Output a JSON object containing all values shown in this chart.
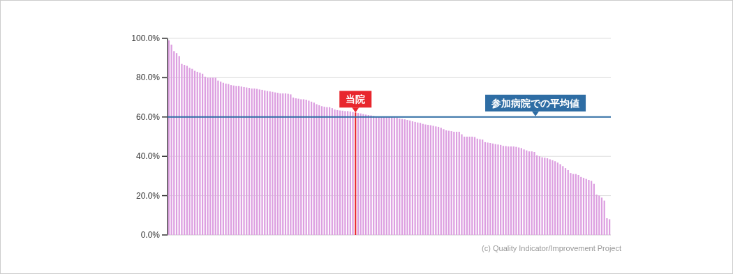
{
  "chart_data": {
    "type": "bar",
    "categories": [
      null,
      null,
      null,
      null,
      null,
      null,
      null,
      null,
      null,
      null,
      null,
      null,
      null,
      null,
      null,
      null,
      null,
      null,
      null,
      null,
      null,
      null,
      null,
      null,
      null,
      null,
      null,
      null,
      null,
      null,
      null,
      null,
      null,
      null,
      null,
      null,
      null,
      null,
      null,
      null,
      null,
      null,
      null,
      null,
      null,
      null,
      null,
      null,
      null,
      null,
      null,
      null,
      null,
      null,
      null,
      null,
      null,
      null,
      null,
      null,
      null,
      null,
      null,
      null,
      null,
      null,
      null,
      null,
      null,
      null,
      null,
      null,
      null,
      null,
      null,
      null,
      null,
      null,
      null,
      null,
      null,
      null,
      null,
      null,
      null,
      null,
      null,
      null,
      null,
      null,
      null,
      null,
      null,
      null,
      null,
      null,
      null,
      null,
      null,
      null,
      null,
      null,
      null,
      null,
      null,
      null,
      null,
      null,
      null,
      null,
      null,
      null,
      null,
      null,
      null,
      null,
      null,
      null,
      null,
      null,
      null,
      null,
      null,
      null,
      null,
      null,
      null,
      null,
      null,
      null,
      null,
      null,
      null,
      null,
      null,
      null,
      null,
      null,
      null,
      null,
      null,
      null,
      null,
      null,
      null,
      null,
      null,
      null,
      null,
      null,
      null,
      null,
      null,
      null,
      null,
      null,
      null,
      null,
      null,
      null,
      null,
      null,
      null,
      null,
      null,
      null,
      null,
      null,
      null,
      null,
      null
    ],
    "values": [
      99,
      96.8,
      93.5,
      92.5,
      91,
      87,
      86.5,
      86,
      85,
      84.5,
      83.5,
      83,
      82.5,
      82,
      80.5,
      80,
      80,
      80,
      80,
      78.5,
      78,
      77.4,
      77,
      76.8,
      76.2,
      76,
      75.8,
      75.8,
      75.5,
      75.2,
      75,
      74.8,
      74.5,
      74.5,
      74.3,
      74,
      73.8,
      73.5,
      73.2,
      73,
      72.8,
      72.5,
      72.3,
      72,
      72,
      72,
      71.8,
      71.5,
      69.9,
      69.5,
      69.3,
      69,
      69,
      68.8,
      68.3,
      67.8,
      67.3,
      66.5,
      66,
      65.5,
      65.2,
      65,
      65,
      64.5,
      63.8,
      63.5,
      63.3,
      63.2,
      63,
      63,
      62.8,
      62.5,
      62.3,
      62,
      61.8,
      61.5,
      61.2,
      61,
      60.8,
      60.5,
      60.3,
      60.2,
      60.1,
      60,
      60,
      60,
      59.9,
      59.8,
      59.7,
      59.2,
      59,
      58.8,
      58.5,
      58.2,
      57.8,
      57.5,
      57.2,
      57,
      56.5,
      56.2,
      56,
      55.8,
      55.5,
      55.2,
      55,
      54.5,
      53.8,
      53.2,
      53,
      52.8,
      52.5,
      52.5,
      52.5,
      51.2,
      50,
      50,
      50,
      50,
      49.8,
      49,
      48.7,
      48.5,
      47.2,
      47,
      46.8,
      46.5,
      46.2,
      46,
      45.8,
      45.3,
      45.2,
      45,
      45,
      45,
      44.8,
      44.5,
      44.2,
      43.5,
      43,
      42.5,
      42.5,
      42.2,
      40.5,
      40,
      39.5,
      39.3,
      39,
      38.5,
      38,
      37.5,
      36.8,
      36,
      35,
      34,
      33,
      31.5,
      31,
      31,
      30.5,
      29.5,
      29,
      28.5,
      28,
      27.5,
      26,
      20.5,
      20,
      19,
      17.5,
      8.5,
      8
    ],
    "colors": [
      "#dc9ee0",
      "#dc9ee0",
      "#dc9ee0",
      "#dc9ee0",
      "#dc9ee0",
      "#dc9ee0",
      "#dc9ee0",
      "#dc9ee0",
      "#dc9ee0",
      "#dc9ee0",
      "#dc9ee0",
      "#dc9ee0",
      "#dc9ee0",
      "#dc9ee0",
      "#dc9ee0",
      "#dc9ee0",
      "#dc9ee0",
      "#dc9ee0",
      "#dc9ee0",
      "#dc9ee0",
      "#dc9ee0",
      "#dc9ee0",
      "#dc9ee0",
      "#dc9ee0",
      "#dc9ee0",
      "#dc9ee0",
      "#dc9ee0",
      "#dc9ee0",
      "#dc9ee0",
      "#dc9ee0",
      "#dc9ee0",
      "#dc9ee0",
      "#dc9ee0",
      "#dc9ee0",
      "#dc9ee0",
      "#dc9ee0",
      "#dc9ee0",
      "#dc9ee0",
      "#dc9ee0",
      "#dc9ee0",
      "#dc9ee0",
      "#dc9ee0",
      "#dc9ee0",
      "#dc9ee0",
      "#dc9ee0",
      "#dc9ee0",
      "#dc9ee0",
      "#dc9ee0",
      "#dc9ee0",
      "#dc9ee0",
      "#dc9ee0",
      "#dc9ee0",
      "#dc9ee0",
      "#dc9ee0",
      "#dc9ee0",
      "#dc9ee0",
      "#dc9ee0",
      "#dc9ee0",
      "#dc9ee0",
      "#dc9ee0",
      "#dc9ee0",
      "#dc9ee0",
      "#dc9ee0",
      "#dc9ee0",
      "#dc9ee0",
      "#dc9ee0",
      "#dc9ee0",
      "#dc9ee0",
      "#dc9ee0",
      "#dc9ee0",
      "#dc9ee0",
      "#dc9ee0",
      "#e8262d",
      "#dc9ee0",
      "#dc9ee0",
      "#dc9ee0",
      "#dc9ee0",
      "#dc9ee0",
      "#dc9ee0",
      "#dc9ee0",
      "#dc9ee0",
      "#dc9ee0",
      "#dc9ee0",
      "#dc9ee0",
      "#dc9ee0",
      "#dc9ee0",
      "#dc9ee0",
      "#dc9ee0",
      "#dc9ee0",
      "#dc9ee0",
      "#dc9ee0",
      "#dc9ee0",
      "#dc9ee0",
      "#dc9ee0",
      "#dc9ee0",
      "#dc9ee0",
      "#dc9ee0",
      "#dc9ee0",
      "#dc9ee0",
      "#dc9ee0",
      "#dc9ee0",
      "#dc9ee0",
      "#dc9ee0",
      "#dc9ee0",
      "#dc9ee0",
      "#dc9ee0",
      "#dc9ee0",
      "#dc9ee0",
      "#dc9ee0",
      "#dc9ee0",
      "#dc9ee0",
      "#dc9ee0",
      "#dc9ee0",
      "#dc9ee0",
      "#dc9ee0",
      "#dc9ee0",
      "#dc9ee0",
      "#dc9ee0",
      "#dc9ee0",
      "#dc9ee0",
      "#dc9ee0",
      "#dc9ee0",
      "#dc9ee0",
      "#dc9ee0",
      "#dc9ee0",
      "#dc9ee0",
      "#dc9ee0",
      "#dc9ee0",
      "#dc9ee0",
      "#dc9ee0",
      "#dc9ee0",
      "#dc9ee0",
      "#dc9ee0",
      "#dc9ee0",
      "#dc9ee0",
      "#dc9ee0",
      "#dc9ee0",
      "#dc9ee0",
      "#dc9ee0",
      "#dc9ee0",
      "#dc9ee0",
      "#dc9ee0",
      "#dc9ee0",
      "#dc9ee0",
      "#dc9ee0",
      "#dc9ee0",
      "#dc9ee0",
      "#dc9ee0",
      "#dc9ee0",
      "#dc9ee0",
      "#dc9ee0",
      "#dc9ee0",
      "#dc9ee0",
      "#dc9ee0",
      "#dc9ee0",
      "#dc9ee0",
      "#dc9ee0",
      "#dc9ee0",
      "#dc9ee0",
      "#dc9ee0",
      "#dc9ee0",
      "#dc9ee0",
      "#dc9ee0",
      "#dc9ee0",
      "#dc9ee0",
      "#dc9ee0",
      "#dc9ee0",
      "#dc9ee0",
      "#dc9ee0",
      "#dc9ee0",
      "#dc9ee0"
    ],
    "ylim": [
      0,
      100
    ],
    "yticks": [
      {
        "value": 0,
        "label": "0.0%"
      },
      {
        "value": 20,
        "label": "20.0%"
      },
      {
        "value": 40,
        "label": "40.0%"
      },
      {
        "value": 60,
        "label": "60.0%"
      },
      {
        "value": 80,
        "label": "80.0%"
      },
      {
        "value": 100,
        "label": "100.0%"
      }
    ],
    "grid": "y",
    "ref_lines": [
      {
        "axis": "y",
        "value": 60,
        "label": "参加病院での平均値",
        "color": "#2e6da4"
      }
    ],
    "annotations": [
      {
        "text": "当院",
        "y": 62.3
      },
      "(c) Quality Indicator/Improvement Project"
    ]
  }
}
